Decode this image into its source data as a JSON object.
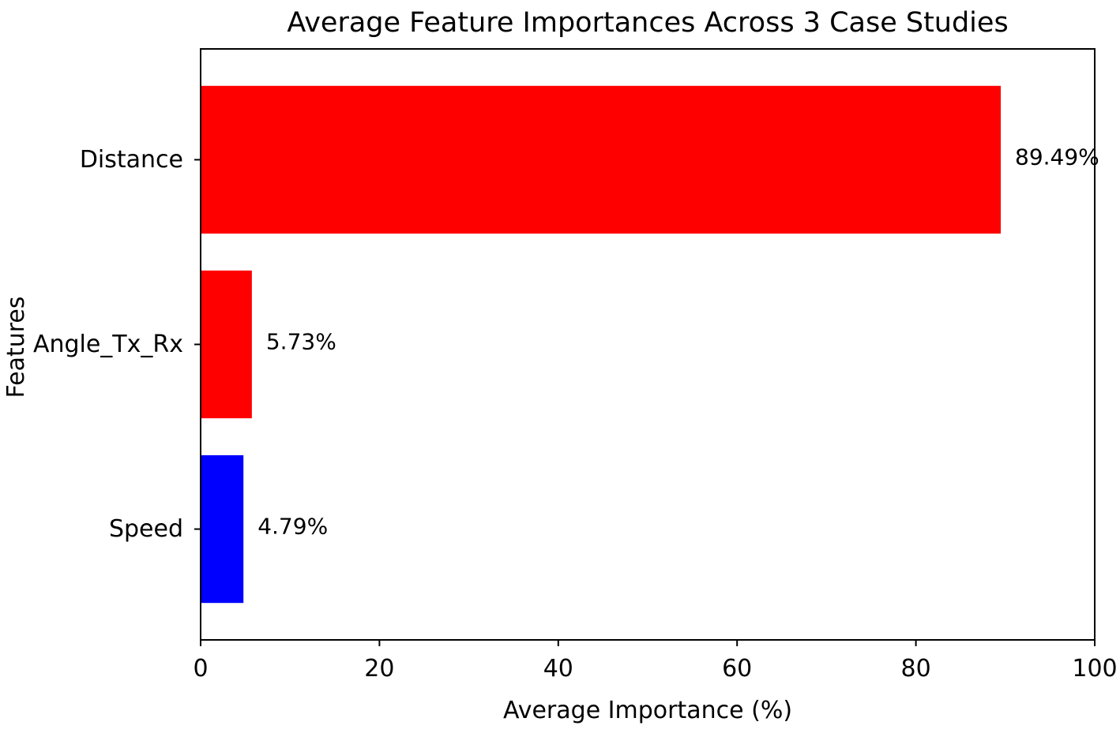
{
  "chart_data": {
    "type": "bar",
    "orientation": "horizontal",
    "title": "Average Feature Importances Across 3 Case Studies",
    "xlabel": "Average Importance (%)",
    "ylabel": "Features",
    "categories": [
      "Distance",
      "Angle_Tx_Rx",
      "Speed"
    ],
    "values": [
      89.49,
      5.73,
      4.79
    ],
    "value_labels": [
      "89.49%",
      "5.73%",
      "4.79%"
    ],
    "bar_colors": [
      "#ff0000",
      "#ff0000",
      "#0000ff"
    ],
    "xlim": [
      0,
      100
    ],
    "xticks": [
      0,
      20,
      40,
      60,
      80,
      100
    ],
    "xtick_labels": [
      "0",
      "20",
      "40",
      "60",
      "80",
      "100"
    ],
    "grid": false,
    "legend": "none"
  }
}
